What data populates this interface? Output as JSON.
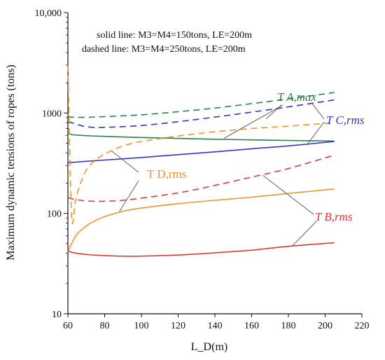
{
  "chart_data": {
    "type": "line",
    "title": "",
    "xlabel": "L_D(m)",
    "ylabel": "Maximum dynamic tensions of ropes (tons)",
    "xlim": [
      60,
      220
    ],
    "ylim": [
      10,
      10000
    ],
    "yscale": "log",
    "x_ticks": [
      60,
      80,
      100,
      120,
      140,
      160,
      180,
      200,
      220
    ],
    "x_tick_labels": [
      "60",
      "80",
      "100",
      "120",
      "140",
      "160",
      "180",
      "200",
      "220"
    ],
    "y_ticks": [
      10,
      100,
      1000,
      10000
    ],
    "y_tick_labels": [
      "10",
      "100",
      "1000",
      "10,000"
    ],
    "grid": false,
    "notes": [
      "solid line: M3=M4=150tons, LE=200m",
      "dashed line: M3=M4=250tons, LE=200m"
    ],
    "series_labels": {
      "A_max": "T A,max",
      "C_rms": "T C,rms",
      "D_rms": "T D,rms",
      "B_rms": "T B,rms"
    },
    "colors": {
      "A": "#2e7d4f",
      "B": "#d93b3b",
      "C": "#3434c8",
      "D": "#f0922e"
    },
    "series": [
      {
        "key": "A_max_solid",
        "group": "A",
        "dashed": false,
        "x": [
          60,
          62,
          70,
          80,
          100,
          120,
          140,
          160,
          180,
          205
        ],
        "y": [
          640,
          610,
          595,
          585,
          570,
          558,
          548,
          540,
          533,
          525
        ]
      },
      {
        "key": "A_max_dashed",
        "group": "A",
        "dashed": true,
        "x": [
          60,
          62,
          70,
          80,
          100,
          120,
          140,
          160,
          180,
          205
        ],
        "y": [
          930,
          910,
          905,
          920,
          960,
          1030,
          1120,
          1240,
          1380,
          1600
        ]
      },
      {
        "key": "C_rms_solid",
        "group": "C",
        "dashed": false,
        "x": [
          60,
          70,
          80,
          100,
          120,
          140,
          160,
          180,
          205
        ],
        "y": [
          320,
          330,
          340,
          360,
          385,
          410,
          440,
          470,
          520
        ]
      },
      {
        "key": "C_rms_dashed",
        "group": "C",
        "dashed": true,
        "x": [
          60,
          62,
          70,
          80,
          100,
          120,
          140,
          160,
          180,
          205
        ],
        "y": [
          820,
          800,
          730,
          720,
          750,
          820,
          910,
          1020,
          1150,
          1350
        ]
      },
      {
        "key": "D_rms_solid",
        "group": "D",
        "dashed": false,
        "x": [
          60,
          62,
          65,
          70,
          75,
          80,
          90,
          100,
          120,
          140,
          160,
          180,
          205
        ],
        "y": [
          42,
          50,
          62,
          75,
          85,
          93,
          105,
          113,
          125,
          135,
          145,
          158,
          175
        ]
      },
      {
        "key": "D_rms_dashed",
        "group": "D",
        "dashed": true,
        "x": [
          60,
          62,
          64,
          66,
          70,
          75,
          80,
          85,
          90,
          100,
          120,
          140,
          160,
          180,
          205
        ],
        "y": [
          3000,
          95,
          130,
          180,
          270,
          340,
          390,
          430,
          470,
          520,
          590,
          650,
          700,
          740,
          800
        ]
      },
      {
        "key": "B_rms_solid",
        "group": "B",
        "dashed": false,
        "x": [
          60,
          62,
          70,
          80,
          90,
          100,
          120,
          140,
          160,
          180,
          205
        ],
        "y": [
          43,
          41,
          39,
          38,
          37.5,
          37.5,
          38.5,
          40.5,
          43,
          47,
          51
        ]
      },
      {
        "key": "B_rms_dashed",
        "group": "B",
        "dashed": true,
        "x": [
          60,
          62,
          70,
          80,
          90,
          100,
          120,
          140,
          160,
          180,
          205
        ],
        "y": [
          145,
          140,
          133,
          132,
          135,
          142,
          160,
          190,
          230,
          280,
          380
        ]
      }
    ]
  }
}
